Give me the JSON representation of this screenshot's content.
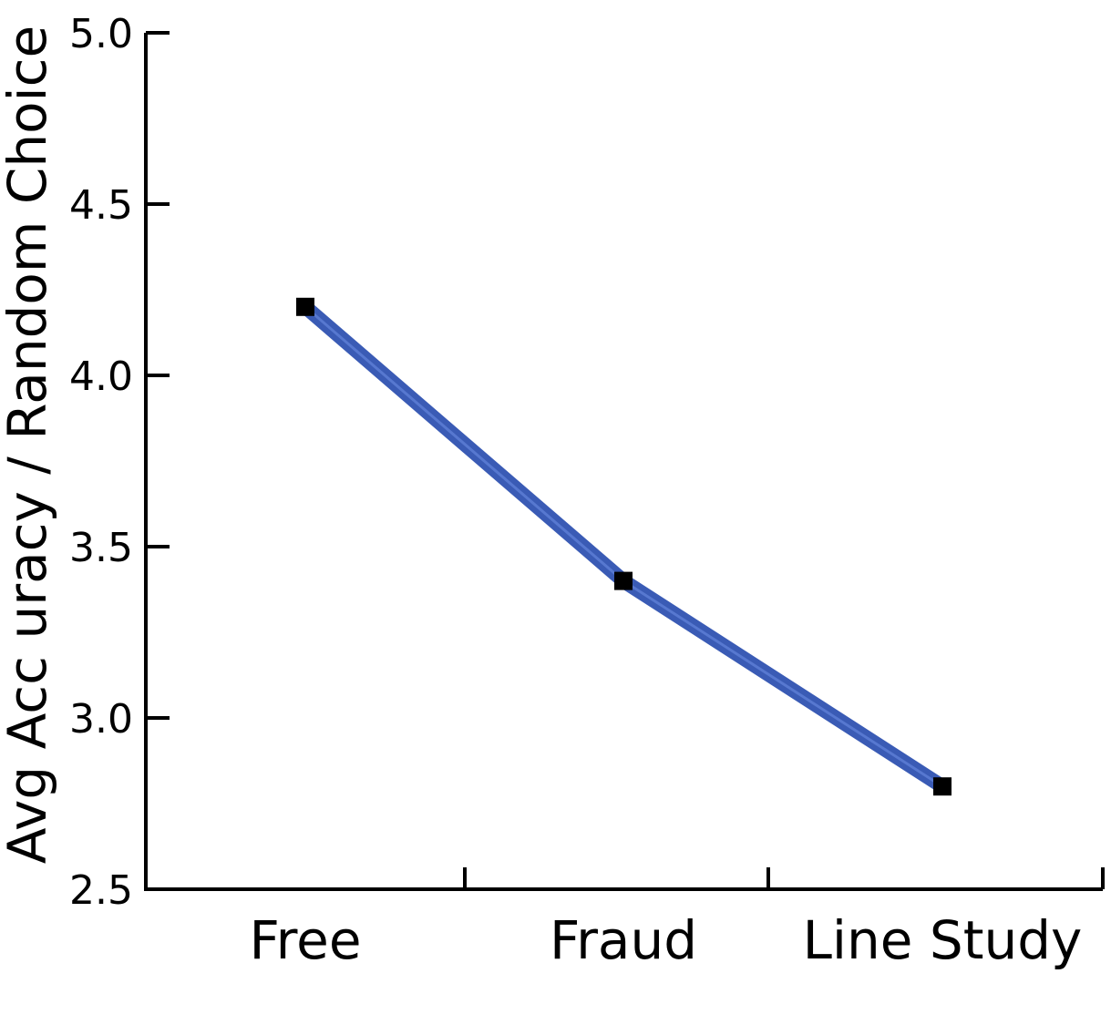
{
  "chart_data": {
    "type": "line",
    "title": "",
    "xlabel": "",
    "ylabel": "Avg Acc uracy / Random Choice",
    "categories": [
      "Free",
      "Fraud",
      "Line Study"
    ],
    "series": [
      {
        "values": [
          4.2,
          3.4,
          2.8
        ]
      }
    ],
    "ylim": [
      2.5,
      5.0
    ],
    "yticks": [
      "2.5",
      "3.0",
      "3.5",
      "4.0",
      "4.5",
      "5.0"
    ],
    "grid": false,
    "line_color": "#3a5bb5",
    "line_highlight_color": "#6f90e6",
    "marker_color": "#000000"
  }
}
